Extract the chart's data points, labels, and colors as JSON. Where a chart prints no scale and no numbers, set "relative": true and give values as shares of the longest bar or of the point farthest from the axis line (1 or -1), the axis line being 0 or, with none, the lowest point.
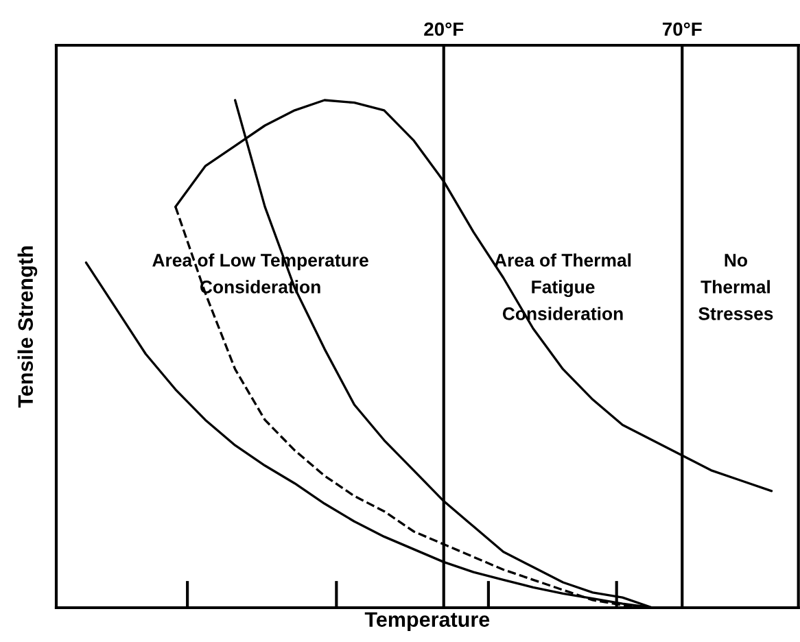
{
  "chart_data": {
    "type": "line",
    "relative": true,
    "xlabel": "Temperature",
    "ylabel": "Tensile Strength",
    "categories": [
      null,
      null,
      null,
      null,
      null,
      null,
      null,
      null,
      null,
      null,
      null,
      null,
      null,
      null,
      null,
      null,
      null,
      null,
      null,
      null,
      null,
      null,
      null,
      null,
      null
    ],
    "tick_labels": false,
    "grid": false,
    "legend": false,
    "annotations": [
      "Area of Low Temperature\nConsideration",
      "Area of Thermal\nFatigue\nConsideration",
      "No\nThermal\nStresses",
      "20°F",
      "70°F"
    ],
    "series": [
      {
        "color": "#000000",
        "line_style": "solid",
        "values": [
          null,
          null,
          null,
          null,
          0.79,
          0.87,
          0.91,
          0.95,
          0.98,
          1.0,
          0.995,
          0.98,
          0.92,
          0.84,
          0.74,
          0.65,
          0.55,
          0.47,
          0.41,
          0.36,
          0.33,
          0.3,
          0.27,
          0.25,
          0.23
        ]
      },
      {
        "color": "#000000",
        "line_style": "solid",
        "values": [
          null,
          null,
          null,
          null,
          null,
          null,
          1.0,
          0.79,
          0.63,
          0.51,
          0.4,
          0.33,
          0.27,
          0.21,
          0.16,
          0.11,
          0.08,
          0.05,
          0.03,
          0.02,
          0,
          null,
          null,
          null,
          null
        ]
      },
      {
        "color": "#000000",
        "line_style": "dashed",
        "values": [
          null,
          null,
          null,
          null,
          0.79,
          0.62,
          0.47,
          0.37,
          0.31,
          0.26,
          0.22,
          0.19,
          0.15,
          0.125,
          0.1,
          0.075,
          0.055,
          0.035,
          0.015,
          0.005,
          0,
          null,
          null,
          null,
          null
        ]
      },
      {
        "color": "#000000",
        "line_style": "solid",
        "values": [
          null,
          0.68,
          0.59,
          0.5,
          0.43,
          0.37,
          0.32,
          0.28,
          0.245,
          0.205,
          0.17,
          0.14,
          0.115,
          0.09,
          0.07,
          0.055,
          0.04,
          0.028,
          0.018,
          0.008,
          0,
          null,
          null,
          null,
          null
        ]
      }
    ]
  }
}
